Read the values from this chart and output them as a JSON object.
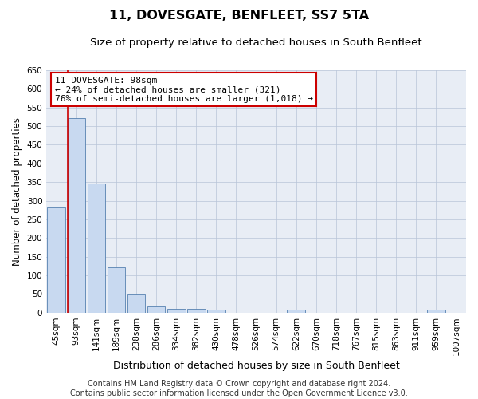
{
  "title": "11, DOVESGATE, BENFLEET, SS7 5TA",
  "subtitle": "Size of property relative to detached houses in South Benfleet",
  "xlabel": "Distribution of detached houses by size in South Benfleet",
  "ylabel": "Number of detached properties",
  "categories": [
    "45sqm",
    "93sqm",
    "141sqm",
    "189sqm",
    "238sqm",
    "286sqm",
    "334sqm",
    "382sqm",
    "430sqm",
    "478sqm",
    "526sqm",
    "574sqm",
    "622sqm",
    "670sqm",
    "718sqm",
    "767sqm",
    "815sqm",
    "863sqm",
    "911sqm",
    "959sqm",
    "1007sqm"
  ],
  "values": [
    282,
    521,
    347,
    122,
    49,
    16,
    11,
    10,
    7,
    0,
    0,
    0,
    8,
    0,
    0,
    0,
    0,
    0,
    0,
    7,
    0
  ],
  "bar_color": "#c8d9f0",
  "bar_edge_color": "#5580b0",
  "ylim": [
    0,
    650
  ],
  "yticks": [
    0,
    50,
    100,
    150,
    200,
    250,
    300,
    350,
    400,
    450,
    500,
    550,
    600,
    650
  ],
  "annotation_text": "11 DOVESGATE: 98sqm\n← 24% of detached houses are smaller (321)\n76% of semi-detached houses are larger (1,018) →",
  "annotation_box_color": "#ffffff",
  "annotation_box_edge_color": "#cc0000",
  "vline_color": "#cc0000",
  "footer": "Contains HM Land Registry data © Crown copyright and database right 2024.\nContains public sector information licensed under the Open Government Licence v3.0.",
  "background_color": "#ffffff",
  "plot_bg_color": "#e8edf5",
  "grid_color": "#b8c4d8",
  "title_fontsize": 11.5,
  "subtitle_fontsize": 9.5,
  "xlabel_fontsize": 9,
  "ylabel_fontsize": 8.5,
  "tick_fontsize": 7.5,
  "annotation_fontsize": 8,
  "footer_fontsize": 7
}
